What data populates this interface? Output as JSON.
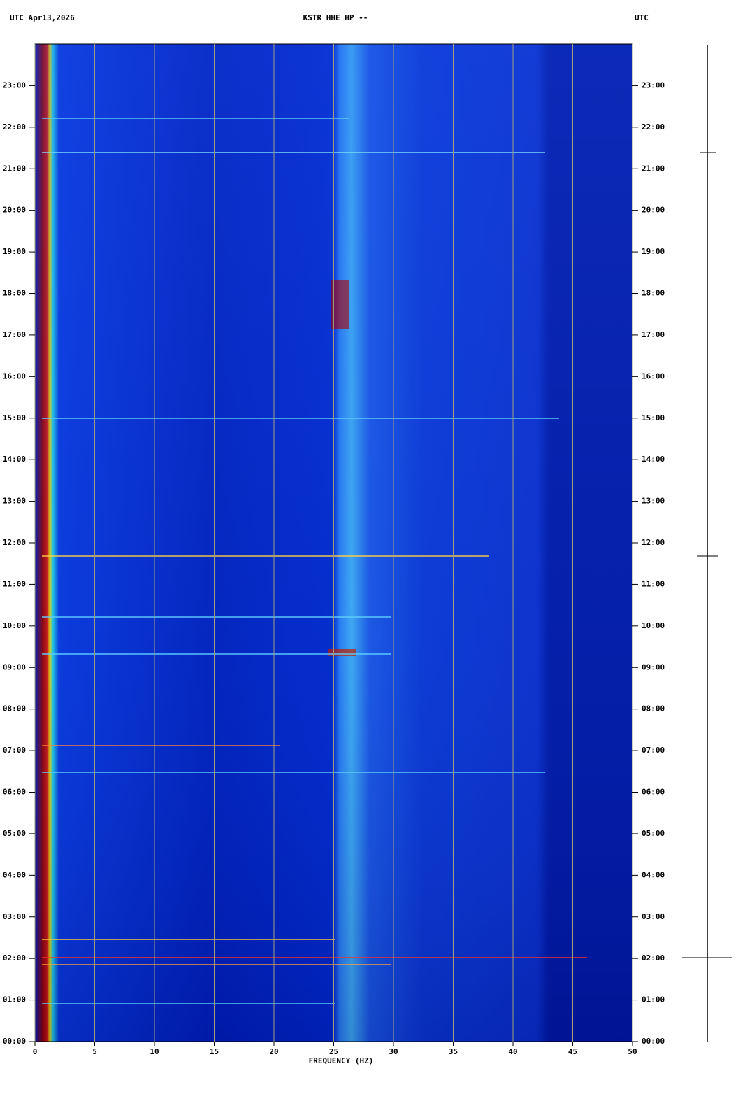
{
  "chart_data": {
    "type": "spectrogram",
    "title": "KSTR HHE HP --",
    "date_label": "UTC  Apr13,2026",
    "right_label": "UTC",
    "x_label": "FREQUENCY (HZ)",
    "xlim": [
      0,
      50
    ],
    "xticks": [
      0,
      5,
      10,
      15,
      20,
      25,
      30,
      35,
      40,
      45,
      50
    ],
    "ylim": [
      0,
      24
    ],
    "yticks": [
      {
        "value": 0,
        "label": "00:00"
      },
      {
        "value": 1,
        "label": "01:00"
      },
      {
        "value": 2,
        "label": "02:00"
      },
      {
        "value": 3,
        "label": "03:00"
      },
      {
        "value": 4,
        "label": "04:00"
      },
      {
        "value": 5,
        "label": "05:00"
      },
      {
        "value": 6,
        "label": "06:00"
      },
      {
        "value": 7,
        "label": "07:00"
      },
      {
        "value": 8,
        "label": "08:00"
      },
      {
        "value": 9,
        "label": "09:00"
      },
      {
        "value": 10,
        "label": "10:00"
      },
      {
        "value": 11,
        "label": "11:00"
      },
      {
        "value": 12,
        "label": "12:00"
      },
      {
        "value": 13,
        "label": "13:00"
      },
      {
        "value": 14,
        "label": "14:00"
      },
      {
        "value": 15,
        "label": "15:00"
      },
      {
        "value": 16,
        "label": "16:00"
      },
      {
        "value": 17,
        "label": "17:00"
      },
      {
        "value": 18,
        "label": "18:00"
      },
      {
        "value": 19,
        "label": "19:00"
      },
      {
        "value": 20,
        "label": "20:00"
      },
      {
        "value": 21,
        "label": "21:00"
      },
      {
        "value": 22,
        "label": "22:00"
      },
      {
        "value": 23,
        "label": "23:00"
      }
    ],
    "grid": true,
    "grid_color": "#a0a080"
  }
}
